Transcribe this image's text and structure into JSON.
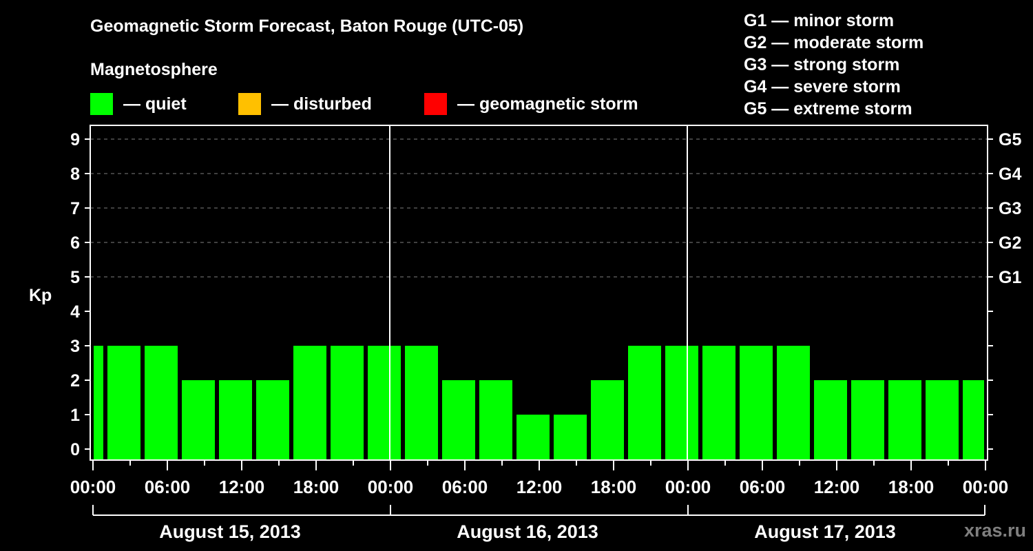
{
  "title": "Geomagnetic Storm Forecast, Baton Rouge (UTC-05)",
  "subtitle": "Magnetosphere",
  "legend": [
    {
      "label": "— quiet",
      "color": "#00ff00"
    },
    {
      "label": "— disturbed",
      "color": "#ffc000"
    },
    {
      "label": "— geomagnetic storm",
      "color": "#ff0000"
    }
  ],
  "g_scale_legend": [
    "G1 — minor storm",
    "G2 — moderate storm",
    "G3 — strong storm",
    "G4 — severe storm",
    "G5 — extreme storm"
  ],
  "watermark": "xras.ru",
  "colors": {
    "background": "#000000",
    "axis": "#ffffff",
    "grid": "#808080",
    "quiet": "#00ff00",
    "disturbed": "#ffc000",
    "storm": "#ff0000",
    "watermark": "#7f7f7f"
  },
  "chart_data": {
    "type": "bar",
    "title": "Geomagnetic Storm Forecast, Baton Rouge (UTC-05)",
    "xlabel": "",
    "ylabel": "Kp",
    "ylim": [
      0,
      9
    ],
    "yticks": [
      0,
      1,
      2,
      3,
      4,
      5,
      6,
      7,
      8,
      9
    ],
    "right_axis_labels": [
      {
        "kp": 5,
        "label": "G1"
      },
      {
        "kp": 6,
        "label": "G2"
      },
      {
        "kp": 7,
        "label": "G3"
      },
      {
        "kp": 8,
        "label": "G4"
      },
      {
        "kp": 9,
        "label": "G5"
      }
    ],
    "grid": {
      "horizontal_dashed_at": [
        5,
        6,
        7,
        8,
        9
      ]
    },
    "xtick_labels": [
      "00:00",
      "06:00",
      "12:00",
      "18:00",
      "00:00",
      "06:00",
      "12:00",
      "18:00",
      "00:00",
      "06:00",
      "12:00",
      "18:00",
      "00:00"
    ],
    "days": [
      "August 15, 2013",
      "August 16, 2013",
      "August 17, 2013"
    ],
    "bar_interval_hours": 3,
    "bar_start_offset_hours": -2,
    "categories": [
      "Aug15 -02:00",
      "Aug15 01:00",
      "Aug15 04:00",
      "Aug15 07:00",
      "Aug15 10:00",
      "Aug15 13:00",
      "Aug15 16:00",
      "Aug15 19:00",
      "Aug15 22:00",
      "Aug16 01:00",
      "Aug16 04:00",
      "Aug16 07:00",
      "Aug16 10:00",
      "Aug16 13:00",
      "Aug16 16:00",
      "Aug16 19:00",
      "Aug16 22:00",
      "Aug17 01:00",
      "Aug17 04:00",
      "Aug17 07:00",
      "Aug17 10:00",
      "Aug17 13:00",
      "Aug17 16:00",
      "Aug17 19:00",
      "Aug17 22:00"
    ],
    "values": [
      3,
      3,
      3,
      2,
      2,
      2,
      3,
      3,
      3,
      3,
      2,
      2,
      1,
      1,
      2,
      3,
      3,
      3,
      3,
      3,
      2,
      2,
      2,
      2,
      2
    ],
    "bar_status": "quiet",
    "legend_position": "top"
  }
}
